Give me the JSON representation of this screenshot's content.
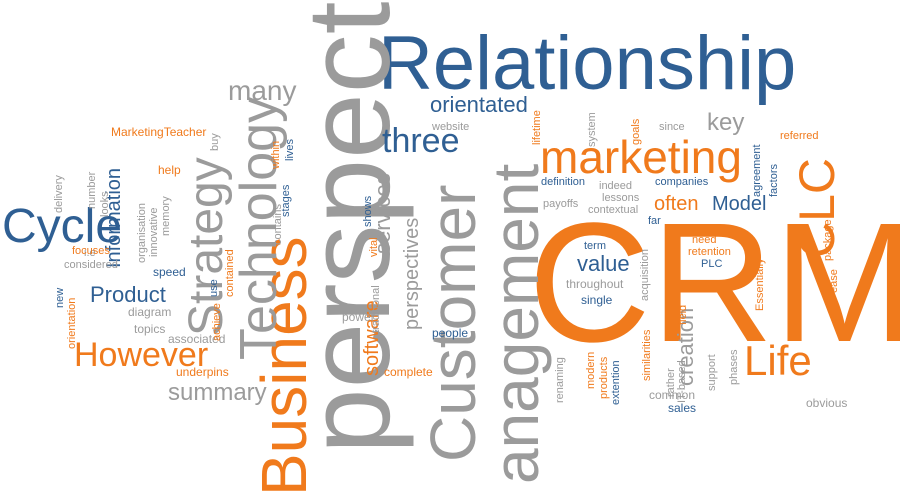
{
  "words": {
    "relationship": "Relationship",
    "crm": "CRM",
    "perspective": "perspective",
    "customer": "Customer",
    "anagement": "anagement",
    "business": "Business",
    "technology": "Technology",
    "strategy": "Strategy",
    "cycle": "Cycle",
    "however": "However",
    "marketing": "marketing",
    "three": "three",
    "life": "Life",
    "clc": "CLC",
    "many": "many",
    "orientated": "orientated",
    "key": "key",
    "information": "Information",
    "product": "Product",
    "summary": "summary",
    "value": "value",
    "model": "Model",
    "often": "often",
    "software": "software",
    "perspectives": "perspectives",
    "services": "services",
    "creation": "creation",
    "marketingteacher": "MarketingTeacher",
    "help": "help",
    "delivery": "delivery",
    "number": "number",
    "looks": "looks",
    "ie": "i.e",
    "considered": "considered",
    "focuses": "focuses",
    "new": "new",
    "orientation": "orientation",
    "diagram": "diagram",
    "topics": "topics",
    "associated": "associated",
    "underpins": "underpins",
    "speed": "speed",
    "use": "use",
    "achieve": "achieve",
    "contained": "contained",
    "innovative": "innovative",
    "organisation": "organisation",
    "memory": "memory",
    "buy": "buy",
    "within": "within",
    "lives": "lives",
    "stages": "stages",
    "contains": "contains",
    "power": "power",
    "website": "website",
    "shows": "shows",
    "vital": "vital",
    "traditional": "traditional",
    "people": "people",
    "complete": "complete",
    "lifetime": "lifetime",
    "system": "system",
    "goals": "goals",
    "since": "since",
    "referred": "referred",
    "agreement": "agreement",
    "factors": "factors",
    "definition": "definition",
    "indeed": "indeed",
    "lessons": "lessons",
    "companies": "companies",
    "payoffs": "payoffs",
    "contextual": "contextual",
    "far": "far",
    "package": "package",
    "ease": "ease",
    "term": "term",
    "need": "need",
    "retention": "retention",
    "plc": "PLC",
    "acquisition": "acquisition",
    "throughout": "throughout",
    "single": "single",
    "essentially": "Essentially",
    "field": "field",
    "renaming": "renaming",
    "modern": "modern",
    "products": "products",
    "extention": "extention",
    "similarities": "similarities",
    "rather": "rather",
    "itbased": "IT-based",
    "support": "support",
    "phases": "phases",
    "common": "common",
    "sales": "sales",
    "obvious": "obvious"
  },
  "colors": {
    "orange": "#f07a1c",
    "blue": "#2f5f93",
    "grey": "#9b9b9b"
  }
}
